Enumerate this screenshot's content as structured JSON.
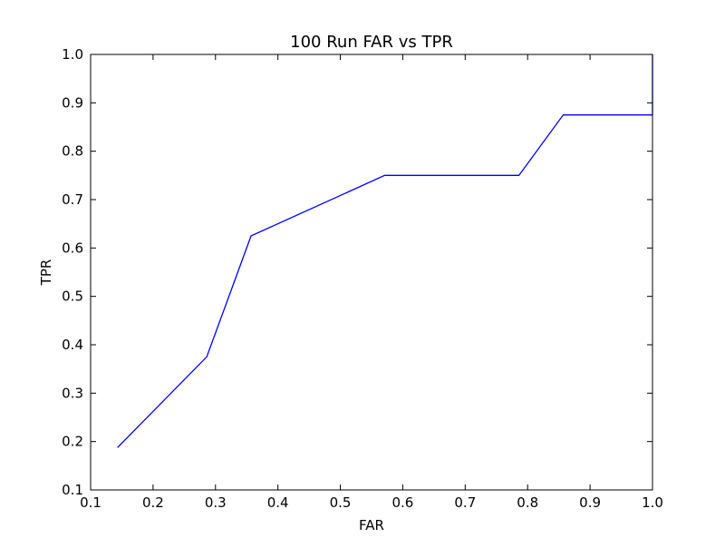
{
  "chart_data": {
    "type": "line",
    "title": "100 Run FAR vs TPR",
    "xlabel": "FAR",
    "ylabel": "TPR",
    "xlim": [
      0.1,
      1.0
    ],
    "ylim": [
      0.1,
      1.0
    ],
    "xticks": [
      "0.1",
      "0.2",
      "0.3",
      "0.4",
      "0.5",
      "0.6",
      "0.7",
      "0.8",
      "0.9",
      "1.0"
    ],
    "yticks": [
      "0.1",
      "0.2",
      "0.3",
      "0.4",
      "0.5",
      "0.6",
      "0.7",
      "0.8",
      "0.9",
      "1.0"
    ],
    "grid": false,
    "series": [
      {
        "color": "#0000ff",
        "x": [
          0.143,
          0.286,
          0.357,
          0.571,
          0.786,
          0.857,
          1.0,
          1.0
        ],
        "y": [
          0.1875,
          0.375,
          0.625,
          0.75,
          0.75,
          0.875,
          0.875,
          1.0
        ]
      }
    ]
  }
}
